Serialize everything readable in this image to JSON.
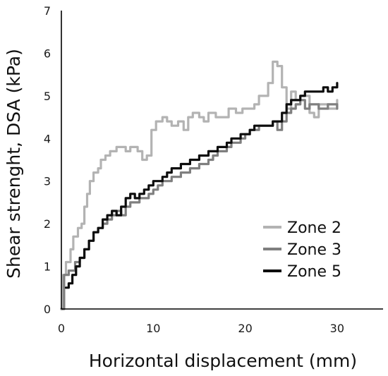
{
  "chart_data": {
    "type": "line",
    "title": "",
    "xlabel": "Horizontal displacement (mm)",
    "ylabel": "Shear strenght, DSA (kPa)",
    "xlim": [
      0,
      35
    ],
    "ylim": [
      0,
      7
    ],
    "xticks": [
      0,
      10,
      20,
      30
    ],
    "yticks": [
      0,
      1,
      2,
      3,
      4,
      5,
      6,
      7
    ],
    "grid": false,
    "legend_position": "right",
    "series": [
      {
        "name": "Zone 2",
        "color": "#b3b3b3",
        "points": [
          [
            0,
            0
          ],
          [
            0.2,
            0.8
          ],
          [
            0.5,
            1.1
          ],
          [
            1.0,
            1.4
          ],
          [
            1.3,
            1.7
          ],
          [
            1.8,
            1.9
          ],
          [
            2.2,
            2.0
          ],
          [
            2.5,
            2.4
          ],
          [
            2.8,
            2.7
          ],
          [
            3.1,
            3.0
          ],
          [
            3.5,
            3.2
          ],
          [
            4.0,
            3.3
          ],
          [
            4.3,
            3.5
          ],
          [
            4.8,
            3.6
          ],
          [
            5.3,
            3.7
          ],
          [
            6.0,
            3.8
          ],
          [
            6.5,
            3.8
          ],
          [
            7.0,
            3.7
          ],
          [
            7.5,
            3.8
          ],
          [
            8.3,
            3.7
          ],
          [
            8.8,
            3.5
          ],
          [
            9.3,
            3.6
          ],
          [
            9.8,
            4.2
          ],
          [
            10.3,
            4.4
          ],
          [
            11.0,
            4.5
          ],
          [
            11.5,
            4.4
          ],
          [
            12.0,
            4.3
          ],
          [
            12.7,
            4.4
          ],
          [
            13.3,
            4.2
          ],
          [
            13.8,
            4.5
          ],
          [
            14.3,
            4.6
          ],
          [
            15.0,
            4.5
          ],
          [
            15.5,
            4.4
          ],
          [
            16.0,
            4.6
          ],
          [
            16.8,
            4.5
          ],
          [
            17.5,
            4.5
          ],
          [
            18.2,
            4.7
          ],
          [
            19.0,
            4.6
          ],
          [
            19.7,
            4.7
          ],
          [
            20.3,
            4.7
          ],
          [
            21.0,
            4.8
          ],
          [
            21.5,
            5.0
          ],
          [
            22.0,
            5.0
          ],
          [
            22.5,
            5.3
          ],
          [
            23.0,
            5.8
          ],
          [
            23.5,
            5.7
          ],
          [
            24.0,
            5.2
          ],
          [
            24.5,
            4.7
          ],
          [
            25.0,
            5.1
          ],
          [
            25.5,
            4.9
          ],
          [
            26.0,
            5.0
          ],
          [
            27.0,
            4.6
          ],
          [
            27.5,
            4.5
          ],
          [
            28.0,
            4.8
          ],
          [
            29.0,
            4.7
          ],
          [
            30.0,
            4.9
          ]
        ]
      },
      {
        "name": "Zone 3",
        "color": "#7f7f7f",
        "points": [
          [
            0,
            0
          ],
          [
            0.3,
            0.8
          ],
          [
            0.8,
            0.9
          ],
          [
            1.5,
            1.1
          ],
          [
            2.0,
            1.2
          ],
          [
            2.5,
            1.4
          ],
          [
            3.0,
            1.6
          ],
          [
            3.5,
            1.8
          ],
          [
            4.0,
            1.9
          ],
          [
            4.5,
            2.0
          ],
          [
            5.0,
            2.1
          ],
          [
            5.5,
            2.2
          ],
          [
            6.0,
            2.3
          ],
          [
            6.5,
            2.2
          ],
          [
            7.0,
            2.4
          ],
          [
            7.5,
            2.5
          ],
          [
            8.0,
            2.5
          ],
          [
            8.5,
            2.6
          ],
          [
            9.0,
            2.6
          ],
          [
            9.5,
            2.7
          ],
          [
            10.0,
            2.8
          ],
          [
            10.5,
            2.9
          ],
          [
            11.0,
            3.0
          ],
          [
            11.5,
            3.0
          ],
          [
            12.0,
            3.1
          ],
          [
            12.5,
            3.1
          ],
          [
            13.0,
            3.2
          ],
          [
            13.5,
            3.2
          ],
          [
            14.0,
            3.3
          ],
          [
            14.5,
            3.3
          ],
          [
            15.0,
            3.4
          ],
          [
            15.5,
            3.4
          ],
          [
            16.0,
            3.5
          ],
          [
            16.5,
            3.6
          ],
          [
            17.0,
            3.7
          ],
          [
            17.5,
            3.7
          ],
          [
            18.0,
            3.8
          ],
          [
            18.5,
            3.9
          ],
          [
            19.0,
            3.9
          ],
          [
            19.5,
            4.0
          ],
          [
            20.0,
            4.1
          ],
          [
            20.5,
            4.2
          ],
          [
            21.0,
            4.2
          ],
          [
            21.5,
            4.3
          ],
          [
            22.0,
            4.3
          ],
          [
            22.5,
            4.3
          ],
          [
            23.0,
            4.4
          ],
          [
            23.5,
            4.2
          ],
          [
            24.0,
            4.4
          ],
          [
            24.5,
            4.6
          ],
          [
            25.0,
            4.7
          ],
          [
            25.5,
            4.8
          ],
          [
            26.0,
            4.9
          ],
          [
            26.5,
            4.7
          ],
          [
            27.0,
            4.8
          ],
          [
            28.0,
            4.7
          ],
          [
            29.0,
            4.8
          ],
          [
            30.0,
            4.7
          ]
        ]
      },
      {
        "name": "Zone 5",
        "color": "#0d0d0d",
        "points": [
          [
            0.5,
            0.5
          ],
          [
            0.8,
            0.6
          ],
          [
            1.2,
            0.8
          ],
          [
            1.6,
            1.0
          ],
          [
            2.0,
            1.2
          ],
          [
            2.5,
            1.4
          ],
          [
            3.0,
            1.6
          ],
          [
            3.5,
            1.8
          ],
          [
            4.0,
            1.9
          ],
          [
            4.5,
            2.1
          ],
          [
            5.0,
            2.2
          ],
          [
            5.5,
            2.3
          ],
          [
            6.0,
            2.2
          ],
          [
            6.5,
            2.4
          ],
          [
            7.0,
            2.6
          ],
          [
            7.5,
            2.7
          ],
          [
            8.0,
            2.6
          ],
          [
            8.5,
            2.7
          ],
          [
            9.0,
            2.8
          ],
          [
            9.5,
            2.9
          ],
          [
            10.0,
            3.0
          ],
          [
            10.5,
            3.0
          ],
          [
            11.0,
            3.1
          ],
          [
            11.5,
            3.2
          ],
          [
            12.0,
            3.3
          ],
          [
            12.5,
            3.3
          ],
          [
            13.0,
            3.4
          ],
          [
            13.5,
            3.4
          ],
          [
            14.0,
            3.5
          ],
          [
            14.5,
            3.5
          ],
          [
            15.0,
            3.6
          ],
          [
            15.5,
            3.6
          ],
          [
            16.0,
            3.7
          ],
          [
            16.5,
            3.7
          ],
          [
            17.0,
            3.8
          ],
          [
            17.5,
            3.8
          ],
          [
            18.0,
            3.9
          ],
          [
            18.5,
            4.0
          ],
          [
            19.0,
            4.0
          ],
          [
            19.5,
            4.1
          ],
          [
            20.0,
            4.1
          ],
          [
            20.5,
            4.2
          ],
          [
            21.0,
            4.3
          ],
          [
            21.5,
            4.3
          ],
          [
            22.0,
            4.3
          ],
          [
            22.5,
            4.3
          ],
          [
            23.0,
            4.4
          ],
          [
            23.5,
            4.4
          ],
          [
            24.0,
            4.6
          ],
          [
            24.5,
            4.8
          ],
          [
            25.0,
            4.9
          ],
          [
            25.5,
            4.9
          ],
          [
            26.0,
            5.0
          ],
          [
            26.5,
            5.1
          ],
          [
            27.0,
            5.1
          ],
          [
            27.5,
            5.1
          ],
          [
            28.0,
            5.1
          ],
          [
            28.5,
            5.2
          ],
          [
            29.0,
            5.1
          ],
          [
            29.5,
            5.2
          ],
          [
            30.0,
            5.3
          ]
        ]
      }
    ]
  }
}
